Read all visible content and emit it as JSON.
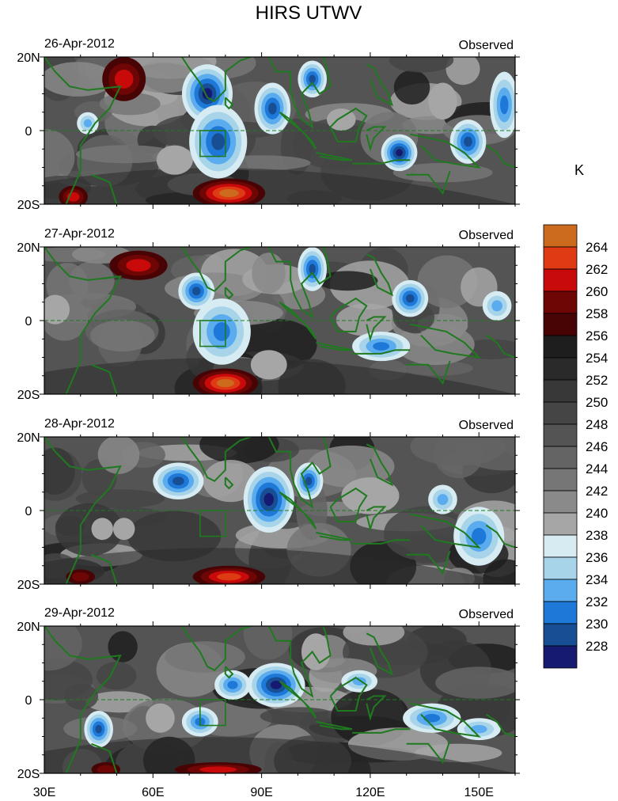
{
  "figure": {
    "title": "HIRS UTWV",
    "colorbar_unit": "K"
  },
  "panels": [
    {
      "date": "26-Apr-2012",
      "tag": "Observed"
    },
    {
      "date": "27-Apr-2012",
      "tag": "Observed"
    },
    {
      "date": "28-Apr-2012",
      "tag": "Observed"
    },
    {
      "date": "29-Apr-2012",
      "tag": "Observed"
    }
  ],
  "lat_labels": [
    "20N",
    "0",
    "20S"
  ],
  "lon_labels": [
    "30E",
    "60E",
    "90E",
    "120E",
    "150E"
  ],
  "colorbar": {
    "levels": [
      "264",
      "262",
      "260",
      "258",
      "256",
      "254",
      "252",
      "250",
      "248",
      "246",
      "244",
      "242",
      "240",
      "238",
      "236",
      "234",
      "232",
      "230",
      "228"
    ],
    "colors": [
      "#cc6a1e",
      "#de3a14",
      "#c80a0a",
      "#6e0606",
      "#480404",
      "#1e1e1e",
      "#2a2a2a",
      "#383838",
      "#454545",
      "#545454",
      "#646464",
      "#767676",
      "#8a8a8a",
      "#a6a6a6",
      "#d6ecf2",
      "#a8d4ea",
      "#5aacee",
      "#1e78d8",
      "#184e94",
      "#161a70"
    ]
  },
  "chart_data": {
    "type": "heatmap",
    "title": "HIRS UTWV",
    "unit": "K",
    "xlim": [
      "30E",
      "160E"
    ],
    "ylim": [
      "20S",
      "20N"
    ],
    "panels": [
      "26-Apr-2012",
      "27-Apr-2012",
      "28-Apr-2012",
      "29-Apr-2012"
    ],
    "levels": [
      228,
      230,
      232,
      234,
      236,
      238,
      240,
      242,
      244,
      246,
      248,
      250,
      252,
      254,
      256,
      258,
      260,
      262,
      264
    ]
  },
  "colors": {
    "coast": "#1f7a1f",
    "equator": "#1f7a1f",
    "box": "#1f7a1f"
  }
}
